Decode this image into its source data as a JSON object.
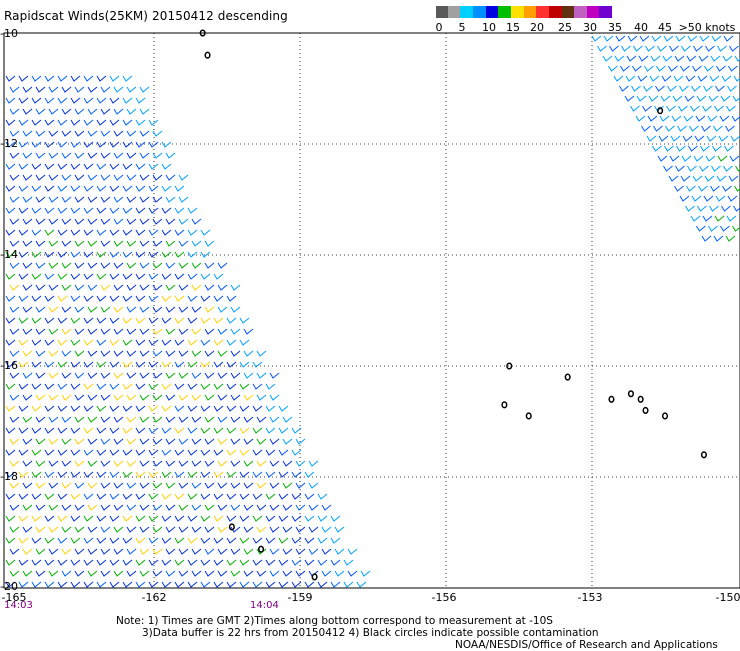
{
  "title": "Rapidscat Winds(25KM) 20150412 descending",
  "legend": {
    "labels": [
      "0",
      "5",
      "10",
      "15",
      "20",
      "25",
      "30",
      "35",
      "40",
      "45",
      ">50 knots"
    ],
    "colors": [
      "#595959",
      "#a0a0a0",
      "#00d0ff",
      "#0090ff",
      "#0000e0",
      "#00c000",
      "#ffe000",
      "#ffa000",
      "#ff3030",
      "#c00000",
      "#603010",
      "#c060c0",
      "#c000c0",
      "#7000d0"
    ]
  },
  "chart_data": {
    "type": "scatter",
    "title": "Rapidscat Winds(25KM) 20150412 descending",
    "x_ticks": [
      "-165",
      "-162",
      "-159",
      "-156",
      "-153",
      "-150"
    ],
    "y_ticks": [
      "-10",
      "-12",
      "-14",
      "-16",
      "-18",
      "-20"
    ],
    "xlim": [
      -165,
      -150
    ],
    "ylim": [
      -20,
      -10
    ],
    "grid": true,
    "time_labels": [
      {
        "lon": -165,
        "text": "14:03"
      },
      {
        "lon": -159,
        "text": "14:04"
      }
    ],
    "swaths": [
      {
        "name": "left-swath",
        "lon_range": [
          -165,
          -158.5
        ],
        "lat_range": [
          -20,
          -10.7
        ],
        "typical_speed_knots": 15
      },
      {
        "name": "right-swath",
        "lon_range": [
          -152.5,
          -150
        ],
        "lat_range": [
          -13.5,
          -10
        ],
        "typical_speed_knots": 12
      }
    ],
    "islands": [
      {
        "lon": -161.0,
        "lat": -10.0
      },
      {
        "lon": -160.9,
        "lat": -10.4
      },
      {
        "lon": -151.6,
        "lat": -11.4
      },
      {
        "lon": -154.7,
        "lat": -16.0
      },
      {
        "lon": -153.5,
        "lat": -16.2
      },
      {
        "lon": -154.8,
        "lat": -16.7
      },
      {
        "lon": -154.3,
        "lat": -16.9
      },
      {
        "lon": -152.6,
        "lat": -16.6
      },
      {
        "lon": -152.2,
        "lat": -16.5
      },
      {
        "lon": -152.0,
        "lat": -16.6
      },
      {
        "lon": -151.9,
        "lat": -16.8
      },
      {
        "lon": -151.5,
        "lat": -16.9
      },
      {
        "lon": -150.7,
        "lat": -17.6
      },
      {
        "lon": -160.4,
        "lat": -18.9
      },
      {
        "lon": -159.8,
        "lat": -19.3
      },
      {
        "lon": -158.7,
        "lat": -19.8
      }
    ]
  },
  "notes": {
    "line1": "Note: 1) Times are GMT 2)Times along bottom correspond to measurement at -10S",
    "line2": "3)Data buffer is 22 hrs from 20150412 4) Black circles indicate possible contamination",
    "credit": "NOAA/NESDIS/Office of Research and Applications"
  }
}
